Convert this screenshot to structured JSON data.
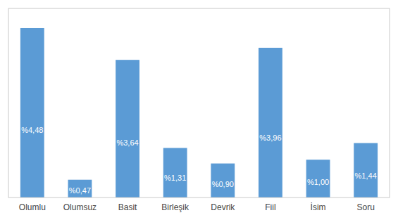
{
  "chart_data": {
    "type": "bar",
    "categories": [
      "Olumlu",
      "Olumsuz",
      "Basit",
      "Birleşik",
      "Devrik",
      "Fiil",
      "İsim",
      "Soru"
    ],
    "values": [
      4.48,
      0.47,
      3.64,
      1.31,
      0.9,
      3.96,
      1.0,
      1.44
    ],
    "value_labels": [
      "%4,48",
      "%0,47",
      "%3,64",
      "%1,31",
      "%0,90",
      "%3,96",
      "%1,00",
      "%1,44"
    ],
    "color": "#5B9BD5",
    "ylim": [
      0,
      5.0
    ],
    "data_labels": true,
    "tick_labels": "x",
    "grid": false
  }
}
